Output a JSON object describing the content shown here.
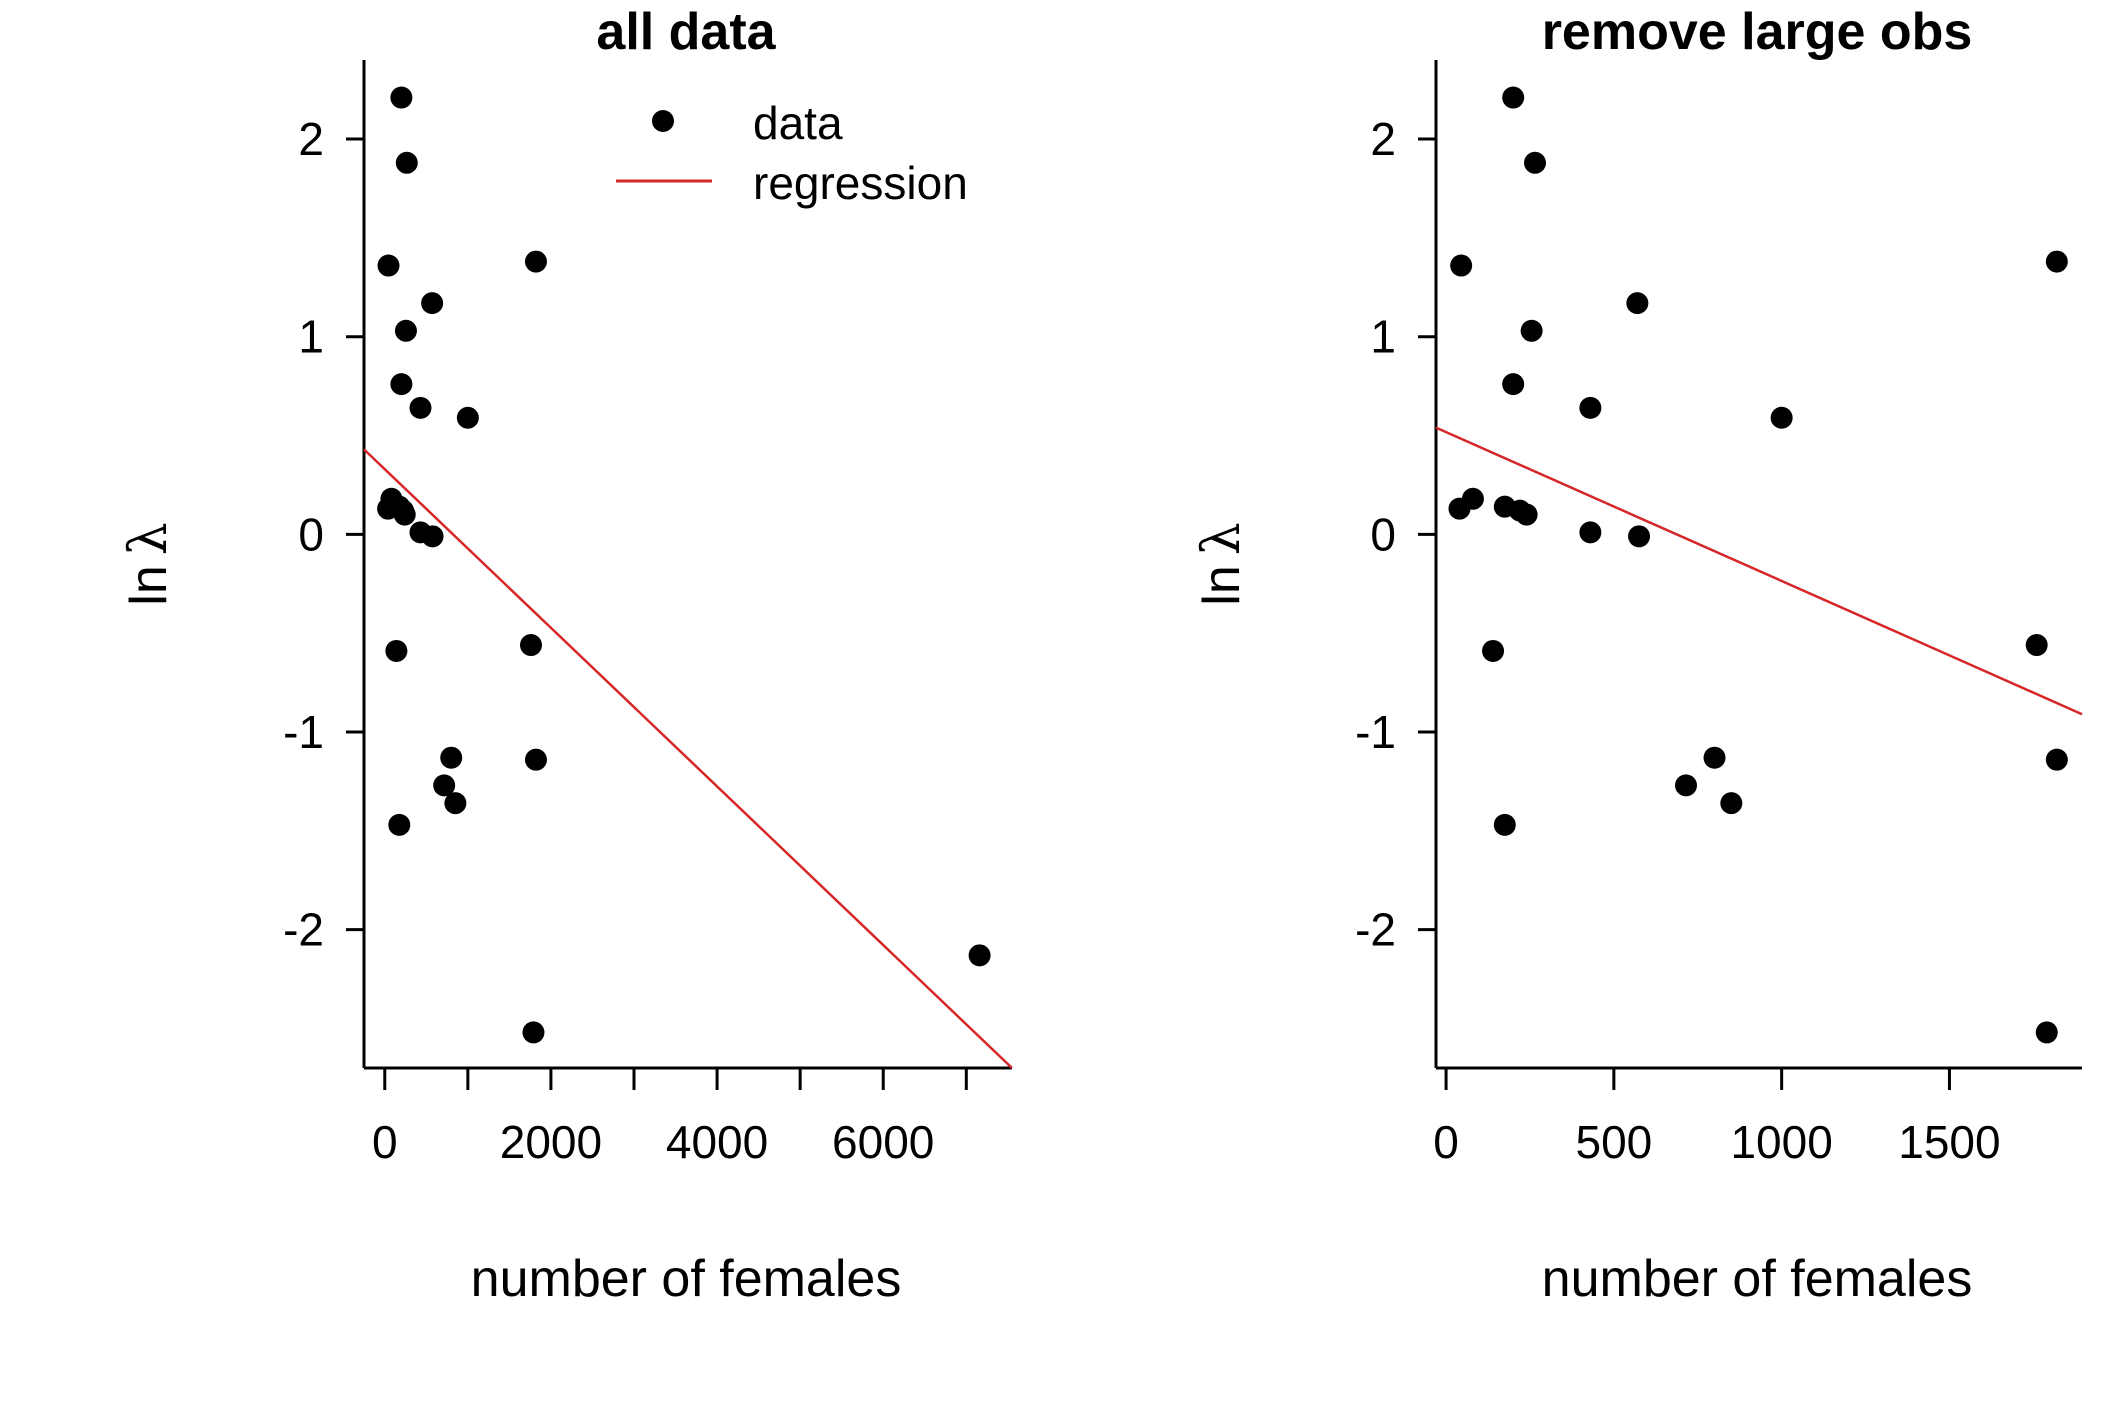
{
  "chart_data": [
    {
      "type": "scatter",
      "title": "all data",
      "xlabel": "number of females",
      "ylabel_prefix": "ln",
      "ylabel_symbol": "λ",
      "xlim": [
        -250,
        7550
      ],
      "ylim": [
        -2.7,
        2.4
      ],
      "xticks": [
        0,
        2000,
        4000,
        6000
      ],
      "xtick_labels": [
        "0",
        "2000",
        "4000",
        "6000"
      ],
      "xminor_ticks": [
        1000,
        3000,
        5000,
        7000
      ],
      "yticks": [
        -2,
        -1,
        0,
        1,
        2
      ],
      "ytick_labels": [
        "-2",
        "-1",
        "0",
        "1",
        "2"
      ],
      "grid": false,
      "legend": {
        "position": "top",
        "entries": [
          {
            "label": "data",
            "kind": "point"
          },
          {
            "label": "regression",
            "kind": "line"
          }
        ]
      },
      "colors": {
        "points": "#000000",
        "regression": "#d62728"
      },
      "points": [
        {
          "x": 200,
          "y": 2.21
        },
        {
          "x": 265,
          "y": 1.88
        },
        {
          "x": 45,
          "y": 1.36
        },
        {
          "x": 1820,
          "y": 1.38
        },
        {
          "x": 570,
          "y": 1.17
        },
        {
          "x": 255,
          "y": 1.03
        },
        {
          "x": 200,
          "y": 0.76
        },
        {
          "x": 430,
          "y": 0.64
        },
        {
          "x": 1000,
          "y": 0.59
        },
        {
          "x": 80,
          "y": 0.18
        },
        {
          "x": 40,
          "y": 0.13
        },
        {
          "x": 175,
          "y": 0.14
        },
        {
          "x": 220,
          "y": 0.12
        },
        {
          "x": 240,
          "y": 0.1
        },
        {
          "x": 430,
          "y": 0.01
        },
        {
          "x": 575,
          "y": -0.01
        },
        {
          "x": 140,
          "y": -0.59
        },
        {
          "x": 1760,
          "y": -0.56
        },
        {
          "x": 800,
          "y": -1.13
        },
        {
          "x": 1820,
          "y": -1.14
        },
        {
          "x": 715,
          "y": -1.27
        },
        {
          "x": 850,
          "y": -1.36
        },
        {
          "x": 175,
          "y": -1.47
        },
        {
          "x": 1790,
          "y": -2.52
        },
        {
          "x": 7160,
          "y": -2.13
        }
      ],
      "regression": {
        "x": [
          -250,
          7550
        ],
        "y": [
          0.43,
          -2.7
        ]
      }
    },
    {
      "type": "scatter",
      "title": "remove large obs",
      "xlabel": "number of females",
      "ylabel_prefix": "ln",
      "ylabel_symbol": "λ",
      "xlim": [
        -30,
        1895
      ],
      "ylim": [
        -2.7,
        2.4
      ],
      "xticks": [
        0,
        500,
        1000,
        1500
      ],
      "xtick_labels": [
        "0",
        "500",
        "1000",
        "1500"
      ],
      "xminor_ticks": [],
      "yticks": [
        -2,
        -1,
        0,
        1,
        2
      ],
      "ytick_labels": [
        "-2",
        "-1",
        "0",
        "1",
        "2"
      ],
      "grid": false,
      "colors": {
        "points": "#000000",
        "regression": "#d62728"
      },
      "points": [
        {
          "x": 200,
          "y": 2.21
        },
        {
          "x": 265,
          "y": 1.88
        },
        {
          "x": 45,
          "y": 1.36
        },
        {
          "x": 1820,
          "y": 1.38
        },
        {
          "x": 570,
          "y": 1.17
        },
        {
          "x": 255,
          "y": 1.03
        },
        {
          "x": 200,
          "y": 0.76
        },
        {
          "x": 430,
          "y": 0.64
        },
        {
          "x": 1000,
          "y": 0.59
        },
        {
          "x": 80,
          "y": 0.18
        },
        {
          "x": 40,
          "y": 0.13
        },
        {
          "x": 175,
          "y": 0.14
        },
        {
          "x": 220,
          "y": 0.12
        },
        {
          "x": 240,
          "y": 0.1
        },
        {
          "x": 430,
          "y": 0.01
        },
        {
          "x": 575,
          "y": -0.01
        },
        {
          "x": 140,
          "y": -0.59
        },
        {
          "x": 1760,
          "y": -0.56
        },
        {
          "x": 800,
          "y": -1.13
        },
        {
          "x": 1820,
          "y": -1.14
        },
        {
          "x": 715,
          "y": -1.27
        },
        {
          "x": 850,
          "y": -1.36
        },
        {
          "x": 175,
          "y": -1.47
        },
        {
          "x": 1790,
          "y": -2.52
        }
      ],
      "regression": {
        "x": [
          -30,
          1895
        ],
        "y": [
          0.54,
          -0.91
        ]
      }
    }
  ]
}
